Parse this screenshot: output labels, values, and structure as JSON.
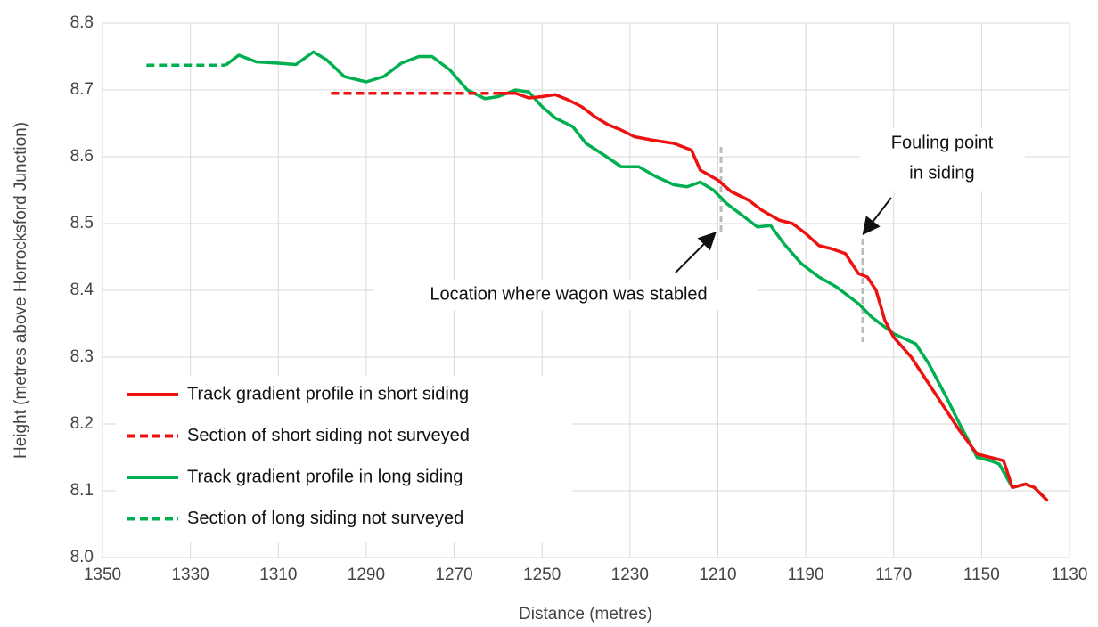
{
  "chart_data": {
    "type": "line",
    "xlabel": "Distance (metres)",
    "ylabel": "Height (metres above Horrocksford Junction)",
    "xlim": [
      1350,
      1130
    ],
    "xticks": [
      1350,
      1330,
      1310,
      1290,
      1270,
      1250,
      1230,
      1210,
      1190,
      1170,
      1150,
      1130
    ],
    "ylim": [
      8.0,
      8.8
    ],
    "yticks": [
      {
        "value": 8.0,
        "label": "8.0"
      },
      8.1,
      8.2,
      8.3,
      8.4,
      8.5,
      8.6,
      8.7,
      8.8
    ],
    "grid": true,
    "legend": "lower left",
    "series": [
      {
        "name": "Track gradient profile in short siding",
        "color": "#ee1111",
        "dashed": false,
        "x": [
          1260,
          1256,
          1253,
          1250,
          1247,
          1244,
          1241,
          1238,
          1235,
          1232,
          1229,
          1225,
          1220,
          1216,
          1214,
          1210,
          1207,
          1203,
          1200,
          1196,
          1193,
          1190,
          1187,
          1184,
          1181,
          1178,
          1176,
          1174,
          1172,
          1170,
          1166,
          1162,
          1158,
          1155,
          1151,
          1148,
          1145,
          1143,
          1140,
          1138,
          1135
        ],
        "values": [
          8.695,
          8.695,
          8.688,
          8.69,
          8.693,
          8.685,
          8.675,
          8.66,
          8.648,
          8.64,
          8.63,
          8.625,
          8.62,
          8.61,
          8.58,
          8.565,
          8.548,
          8.535,
          8.52,
          8.505,
          8.5,
          8.485,
          8.467,
          8.462,
          8.455,
          8.425,
          8.42,
          8.4,
          8.355,
          8.33,
          8.3,
          8.26,
          8.22,
          8.19,
          8.155,
          8.15,
          8.145,
          8.105,
          8.11,
          8.105,
          8.085
        ]
      },
      {
        "name": "Section of short siding not surveyed",
        "color": "#ee1111",
        "dashed": true,
        "x": [
          1298,
          1260
        ],
        "values": [
          8.695,
          8.695
        ]
      },
      {
        "name": "Track gradient profile in long siding",
        "color": "#00b050",
        "dashed": false,
        "x": [
          1322,
          1319,
          1315,
          1310,
          1306,
          1302,
          1299,
          1295,
          1290,
          1286,
          1282,
          1278,
          1275,
          1271,
          1267,
          1263,
          1260,
          1256,
          1253,
          1250,
          1247,
          1243,
          1240,
          1236,
          1232,
          1228,
          1224,
          1220,
          1217,
          1214,
          1211,
          1208,
          1204,
          1201,
          1198,
          1195,
          1191,
          1187,
          1183,
          1178,
          1175,
          1170,
          1165,
          1162,
          1158,
          1155,
          1151,
          1148,
          1146,
          1143,
          1140,
          1138,
          1135
        ],
        "values": [
          8.737,
          8.752,
          8.742,
          8.74,
          8.738,
          8.757,
          8.745,
          8.72,
          8.712,
          8.72,
          8.74,
          8.75,
          8.75,
          8.73,
          8.7,
          8.687,
          8.69,
          8.7,
          8.697,
          8.675,
          8.658,
          8.645,
          8.62,
          8.603,
          8.585,
          8.585,
          8.57,
          8.558,
          8.555,
          8.562,
          8.55,
          8.53,
          8.51,
          8.495,
          8.497,
          8.47,
          8.44,
          8.42,
          8.405,
          8.38,
          8.36,
          8.335,
          8.32,
          8.29,
          8.24,
          8.2,
          8.15,
          8.145,
          8.14,
          8.105,
          8.11,
          8.105,
          8.085
        ]
      },
      {
        "name": "Section of long siding not surveyed",
        "color": "#00b050",
        "dashed": true,
        "x": [
          1340,
          1322
        ],
        "values": [
          8.737,
          8.737
        ]
      }
    ],
    "annotations": [
      {
        "text": [
          "Location where wagon was stabled"
        ]
      },
      {
        "text": [
          "Fouling point",
          "in siding"
        ]
      }
    ]
  }
}
